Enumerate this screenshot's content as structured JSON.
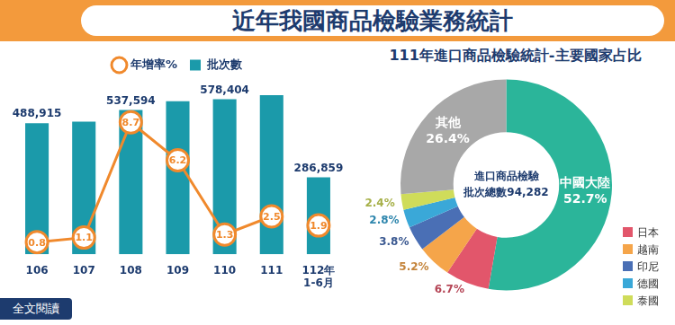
{
  "title": "近年我國商品檢驗業務統計",
  "link": "全文閱讀",
  "chart_data": [
    {
      "type": "bar",
      "categories": [
        "106",
        "107",
        "108",
        "109",
        "110",
        "111",
        "112年\n1-6月"
      ],
      "series": [
        {
          "name": "批次數",
          "type": "bar",
          "color": "#1b9aaa",
          "values": [
            488915,
            494300,
            537594,
            570900,
            578404,
            592900,
            286859
          ],
          "value_labels": [
            "488,915",
            null,
            "537,594",
            null,
            "578,404",
            null,
            "286,859"
          ]
        },
        {
          "name": "年增率%",
          "type": "line",
          "color": "#f0892c",
          "axis": "y2",
          "marker": "circle",
          "values": [
            0.8,
            1.1,
            8.7,
            6.2,
            1.3,
            2.5,
            1.9
          ]
        }
      ],
      "ylim": [
        0,
        650000
      ],
      "y2lim": [
        0,
        11.5
      ],
      "tick_labels": "x",
      "grid": false,
      "legend": "top",
      "data_labels": true
    },
    {
      "type": "doughnut",
      "title": "111年進口商品檢驗統計-主要國家占比",
      "annotations": [
        "進口商品檢驗",
        "批次總數94,282"
      ],
      "categories": [
        "中國大陸",
        "日本",
        "越南",
        "印尼",
        "德國",
        "泰國",
        "其他"
      ],
      "values": [
        52.7,
        6.7,
        5.2,
        3.8,
        2.8,
        2.4,
        26.4
      ],
      "value_labels": [
        "52.7%",
        "6.7%",
        "5.2%",
        "3.8%",
        "2.8%",
        "2.4%",
        "26.4%"
      ],
      "colors": [
        "#2bb59a",
        "#e2566b",
        "#f5a54a",
        "#4a6fb5",
        "#3aa8d8",
        "#cfdc5a",
        "#a8a8a8"
      ],
      "data_labels": true,
      "legend": "bottom right"
    }
  ]
}
